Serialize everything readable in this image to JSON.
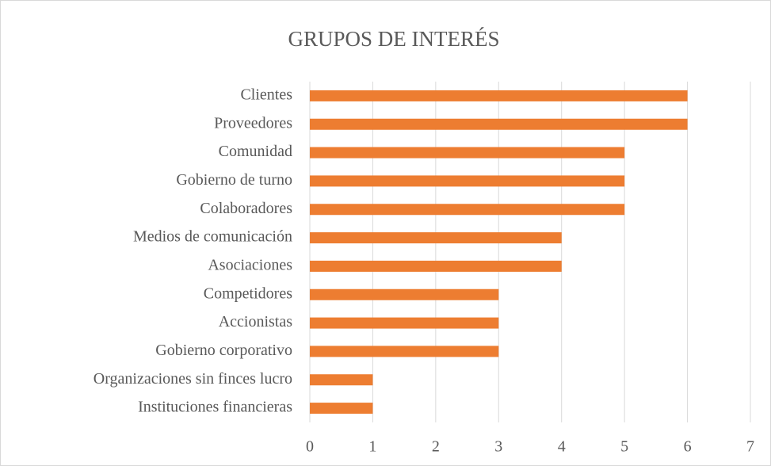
{
  "chart_data": {
    "type": "bar",
    "orientation": "horizontal",
    "title": "GRUPOS DE INTERÉS",
    "categories": [
      "Clientes",
      "Proveedores",
      "Comunidad",
      "Gobierno de turno",
      "Colaboradores",
      "Medios de comunicación",
      "Asociaciones",
      "Competidores",
      "Accionistas",
      "Gobierno corporativo",
      "Organizaciones sin finces lucro",
      "Instituciones financieras"
    ],
    "values": [
      6,
      6,
      5,
      5,
      5,
      4,
      4,
      3,
      3,
      3,
      1,
      1
    ],
    "color": "#ed7d31",
    "xlim": [
      0,
      7
    ],
    "xticks": [
      0,
      1,
      2,
      3,
      4,
      5,
      6,
      7
    ],
    "grid": true
  }
}
